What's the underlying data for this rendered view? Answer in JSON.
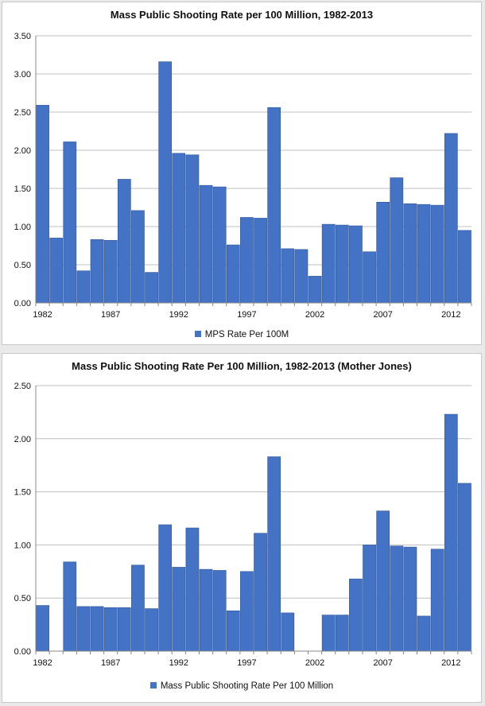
{
  "colors": {
    "bar": "#4472c4",
    "bar_edge": "#2f5597",
    "axis": "#888888"
  },
  "chart_data": [
    {
      "type": "bar",
      "title": "Mass Public Shooting Rate per 100 Million, 1982-2013",
      "x": [
        1982,
        1983,
        1984,
        1985,
        1986,
        1987,
        1988,
        1989,
        1990,
        1991,
        1992,
        1993,
        1994,
        1995,
        1996,
        1997,
        1998,
        1999,
        2000,
        2001,
        2002,
        2003,
        2004,
        2005,
        2006,
        2007,
        2008,
        2009,
        2010,
        2011,
        2012,
        2013
      ],
      "xtick_labels": [
        "1982",
        "1987",
        "1992",
        "1997",
        "2002",
        "2007",
        "2012"
      ],
      "xtick_values": [
        1982,
        1987,
        1992,
        1997,
        2002,
        2007,
        2012
      ],
      "series": [
        {
          "name": "MPS Rate Per 100M",
          "values": [
            2.59,
            0.85,
            2.11,
            0.42,
            0.83,
            0.82,
            1.62,
            1.21,
            0.4,
            3.16,
            1.96,
            1.94,
            1.54,
            1.52,
            0.76,
            1.12,
            1.11,
            2.56,
            0.71,
            0.7,
            0.35,
            1.03,
            1.02,
            1.01,
            0.67,
            1.32,
            1.64,
            1.3,
            1.29,
            1.28,
            2.22,
            0.95
          ]
        }
      ],
      "ylim": [
        0,
        3.5
      ],
      "yticks": [
        "0.00",
        "0.50",
        "1.00",
        "1.50",
        "2.00",
        "2.50",
        "3.00",
        "3.50"
      ],
      "grid": true,
      "legend_position": "bottom"
    },
    {
      "type": "bar",
      "title": "Mass Public Shooting Rate Per 100 Million, 1982-2013 (Mother Jones)",
      "x": [
        1982,
        1983,
        1984,
        1985,
        1986,
        1987,
        1988,
        1989,
        1990,
        1991,
        1992,
        1993,
        1994,
        1995,
        1996,
        1997,
        1998,
        1999,
        2000,
        2001,
        2002,
        2003,
        2004,
        2005,
        2006,
        2007,
        2008,
        2009,
        2010,
        2011,
        2012,
        2013
      ],
      "xtick_labels": [
        "1982",
        "1987",
        "1992",
        "1997",
        "2002",
        "2007",
        "2012"
      ],
      "xtick_values": [
        1982,
        1987,
        1992,
        1997,
        2002,
        2007,
        2012
      ],
      "series": [
        {
          "name": "Mass Public Shooting Rate Per 100 Million",
          "values": [
            0.43,
            0,
            0.84,
            0.42,
            0.42,
            0.41,
            0.41,
            0.81,
            0.4,
            1.19,
            0.79,
            1.16,
            0.77,
            0.76,
            0.38,
            0.75,
            1.11,
            1.83,
            0.36,
            0,
            0,
            0.34,
            0.34,
            0.68,
            1.0,
            1.32,
            0.99,
            0.98,
            0.33,
            0.96,
            2.23,
            1.58
          ]
        }
      ],
      "ylim": [
        0,
        2.5
      ],
      "yticks": [
        "0.00",
        "0.50",
        "1.00",
        "1.50",
        "2.00",
        "2.50"
      ],
      "grid": true,
      "legend_position": "bottom"
    }
  ]
}
